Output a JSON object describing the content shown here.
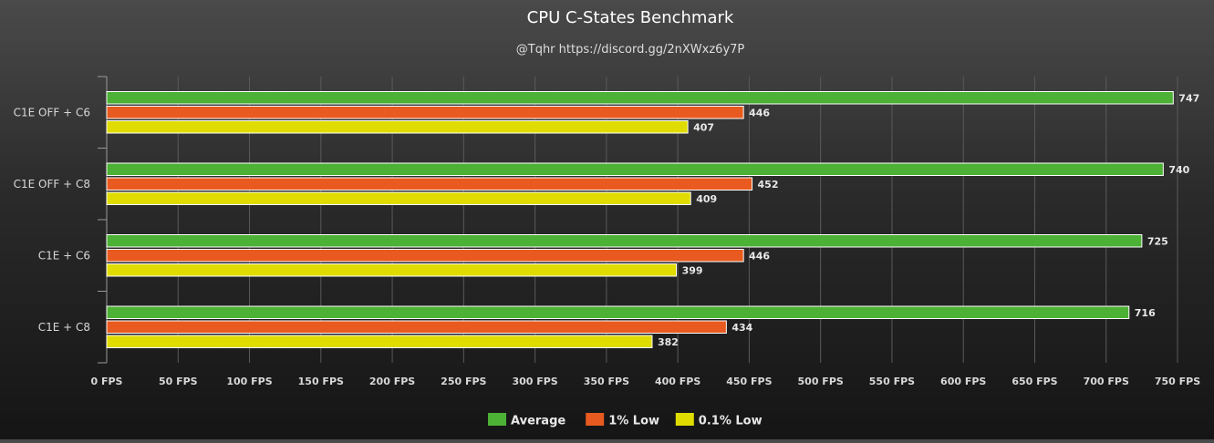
{
  "chart_data": {
    "type": "bar",
    "orientation": "horizontal",
    "title": "CPU C-States Benchmark",
    "subtitle": "@Tqhr https://discord.gg/2nXWxz6y7P",
    "categories": [
      "C1E OFF + C6",
      "C1E OFF + C8",
      "C1E + C6",
      "C1E + C8"
    ],
    "series": [
      {
        "name": "Average",
        "color": "#4cb135",
        "values": [
          747,
          740,
          725,
          716
        ]
      },
      {
        "name": "1% Low",
        "color": "#e85a1f",
        "values": [
          446,
          452,
          446,
          434
        ]
      },
      {
        "name": "0.1% Low",
        "color": "#e0dc00",
        "values": [
          407,
          409,
          399,
          382
        ]
      }
    ],
    "xlim": [
      0,
      750
    ],
    "xticks": [
      0,
      50,
      100,
      150,
      200,
      250,
      300,
      350,
      400,
      450,
      500,
      550,
      600,
      650,
      700,
      750
    ],
    "tick_suffix": " FPS",
    "grid": true,
    "legend_position": "bottom-center",
    "data_labels": true
  }
}
